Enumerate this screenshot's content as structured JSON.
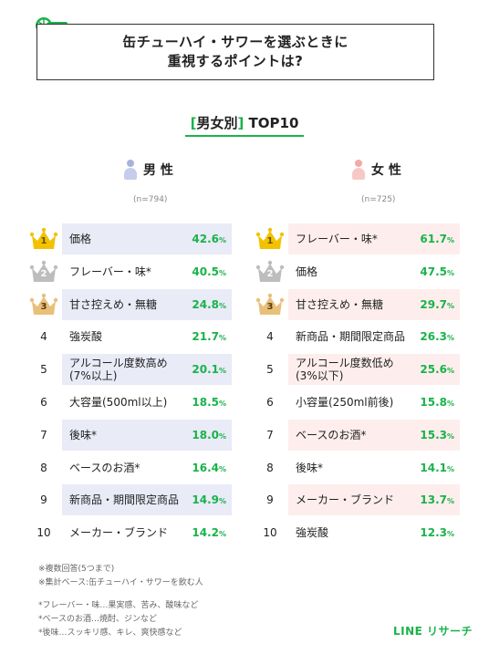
{
  "title": {
    "line1": "缶チューハイ・サワーを選ぶときに",
    "line2": "重視するポイントは?"
  },
  "subtitle": {
    "open": "[",
    "text": "男女別",
    "close": "]",
    "suffix": " TOP10"
  },
  "male": {
    "label": "男 性",
    "n": "(n=794)",
    "colors": {
      "head": "#a8b2dc",
      "body": "#c6cdec",
      "highlight": "#e9ebf7"
    }
  },
  "female": {
    "label": "女 性",
    "n": "(n=725)",
    "colors": {
      "head": "#f2aaa6",
      "body": "#f7c9c6",
      "highlight": "#fdeeed"
    }
  },
  "colors": {
    "accent": "#19b34a",
    "gold": "#f2c200",
    "silver": "#bdbdbd",
    "bronze": "#e8c07a"
  },
  "pct_unit": "%",
  "chart_data": [
    {
      "type": "table",
      "title": "男 性",
      "n": "(n=794)",
      "rows": [
        {
          "rank": "1",
          "label": "価格",
          "value": 42.6,
          "value_text": "42.6",
          "highlight": true
        },
        {
          "rank": "2",
          "label": "フレーバー・味*",
          "value": 40.5,
          "value_text": "40.5",
          "highlight": false
        },
        {
          "rank": "3",
          "label": "甘さ控えめ・無糖",
          "value": 24.8,
          "value_text": "24.8",
          "highlight": true
        },
        {
          "rank": "4",
          "label": "強炭酸",
          "value": 21.7,
          "value_text": "21.7",
          "highlight": false
        },
        {
          "rank": "5",
          "label": "アルコール度数高め\n(7%以上)",
          "value": 20.1,
          "value_text": "20.1",
          "highlight": true
        },
        {
          "rank": "6",
          "label": "大容量(500ml以上)",
          "value": 18.5,
          "value_text": "18.5",
          "highlight": false
        },
        {
          "rank": "7",
          "label": "後味*",
          "value": 18.0,
          "value_text": "18.0",
          "highlight": true
        },
        {
          "rank": "8",
          "label": "ベースのお酒*",
          "value": 16.4,
          "value_text": "16.4",
          "highlight": false
        },
        {
          "rank": "9",
          "label": "新商品・期間限定商品",
          "value": 14.9,
          "value_text": "14.9",
          "highlight": true
        },
        {
          "rank": "10",
          "label": "メーカー・ブランド",
          "value": 14.2,
          "value_text": "14.2",
          "highlight": false
        }
      ]
    },
    {
      "type": "table",
      "title": "女 性",
      "n": "(n=725)",
      "rows": [
        {
          "rank": "1",
          "label": "フレーバー・味*",
          "value": 61.7,
          "value_text": "61.7",
          "highlight": true
        },
        {
          "rank": "2",
          "label": "価格",
          "value": 47.5,
          "value_text": "47.5",
          "highlight": false
        },
        {
          "rank": "3",
          "label": "甘さ控えめ・無糖",
          "value": 29.7,
          "value_text": "29.7",
          "highlight": true
        },
        {
          "rank": "4",
          "label": "新商品・期間限定商品",
          "value": 26.3,
          "value_text": "26.3",
          "highlight": false
        },
        {
          "rank": "5",
          "label": "アルコール度数低め\n(3%以下)",
          "value": 25.6,
          "value_text": "25.6",
          "highlight": true
        },
        {
          "rank": "6",
          "label": "小容量(250ml前後)",
          "value": 15.8,
          "value_text": "15.8",
          "highlight": false
        },
        {
          "rank": "7",
          "label": "ベースのお酒*",
          "value": 15.3,
          "value_text": "15.3",
          "highlight": true
        },
        {
          "rank": "8",
          "label": "後味*",
          "value": 14.1,
          "value_text": "14.1",
          "highlight": false
        },
        {
          "rank": "9",
          "label": "メーカー・ブランド",
          "value": 13.7,
          "value_text": "13.7",
          "highlight": true
        },
        {
          "rank": "10",
          "label": "強炭酸",
          "value": 12.3,
          "value_text": "12.3",
          "highlight": false
        }
      ]
    }
  ],
  "notes": [
    "※複数回答(5つまで)",
    "※集計ベース:缶チューハイ・サワーを飲む人",
    "*フレーバー・味…果実感、苦み、酸味など",
    "*ベースのお酒…焼酎、ジンなど",
    "*後味…スッキリ感、キレ、爽快感など"
  ],
  "brand": "LINE リサーチ",
  "icons": {
    "logo": "chuhai-glass-icon",
    "male": "male-person-icon",
    "female": "female-person-icon",
    "crown": "crown-icon"
  }
}
